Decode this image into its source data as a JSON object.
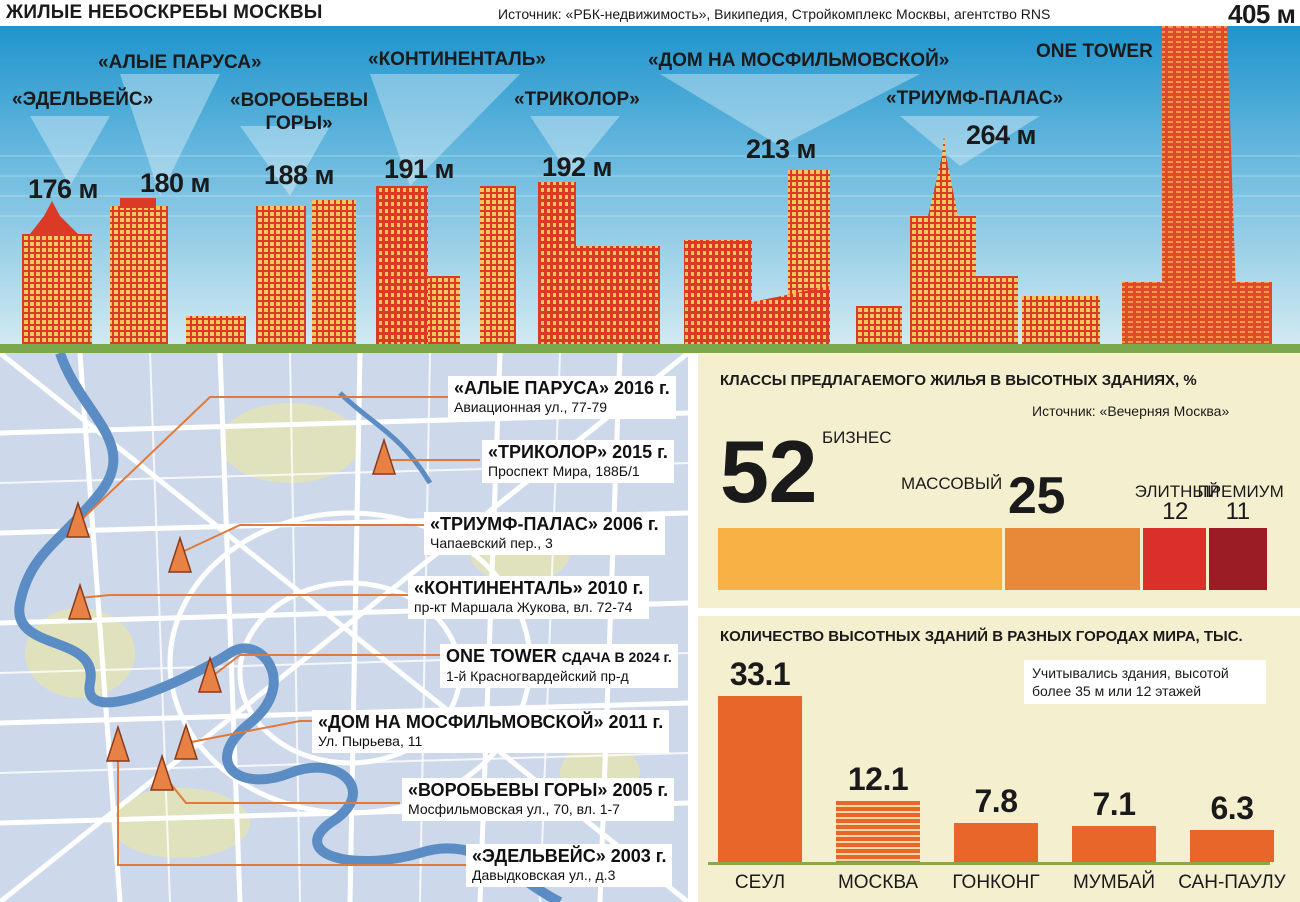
{
  "header": {
    "title": "ЖИЛЫЕ НЕБОСКРЕБЫ МОСКВЫ",
    "source": "Источник: «РБК-недвижимость», Википедия, Стройкомплекс Москвы, агентство RNS"
  },
  "skyline": {
    "buildings": [
      {
        "name": "«ЭДЕЛЬВЕЙС»",
        "height": "176 м"
      },
      {
        "name": "«АЛЫЕ ПАРУСА»",
        "height": "180 м"
      },
      {
        "name": "«ВОРОБЬЕВЫ ГОРЫ»",
        "name_line1": "«ВОРОБЬЕВЫ",
        "name_line2": "ГОРЫ»",
        "height": "188 м"
      },
      {
        "name": "«КОНТИНЕНТАЛЬ»",
        "height": "191 м"
      },
      {
        "name": "«ТРИКОЛОР»",
        "height": "192 м"
      },
      {
        "name": "«ДОМ НА МОСФИЛЬМОВСКОЙ»",
        "height": "213 м"
      },
      {
        "name": "«ТРИУМФ-ПАЛАС»",
        "height": "264 м"
      },
      {
        "name": "ONE TOWER",
        "height": "405 м"
      }
    ]
  },
  "map": {
    "callouts": [
      {
        "name": "«АЛЫЕ ПАРУСА» 2016 г.",
        "address": "Авиационная ул., 77-79"
      },
      {
        "name": "«ТРИКОЛОР» 2015 г.",
        "address": "Проспект Мира, 188Б/1"
      },
      {
        "name": "«ТРИУМФ-ПАЛАС» 2006 г.",
        "address": "Чапаевский пер., 3"
      },
      {
        "name": "«КОНТИНЕНТАЛЬ» 2010 г.",
        "address": "пр-кт Маршала Жукова, вл. 72-74"
      },
      {
        "name": "ONE TOWER",
        "name_suffix": "СДАЧА В 2024 г.",
        "address": "1-й Красногвардейский пр-д"
      },
      {
        "name": "«ДОМ НА МОСФИЛЬМОВСКОЙ» 2011 г.",
        "address": "Ул. Пырьева, 11"
      },
      {
        "name": "«ВОРОБЬЕВЫ ГОРЫ» 2005 г.",
        "address": "Мосфильмовская ул., 70, вл. 1-7"
      },
      {
        "name": "«ЭДЕЛЬВЕЙС» 2003 г.",
        "address": "Давыдковская ул., д.3"
      }
    ]
  },
  "chart_data": [
    {
      "type": "bar",
      "orientation": "stacked-horizontal",
      "title": "КЛАССЫ ПРЕДЛАГАЕМОГО ЖИЛЬЯ В ВЫСОТНЫХ ЗДАНИЯХ, %",
      "source": "Источник: «Вечерняя Москва»",
      "categories": [
        "БИЗНЕС",
        "МАССОВЫЙ",
        "ЭЛИТНЫЙ",
        "ПРЕМИУМ"
      ],
      "values": [
        52,
        25,
        12,
        11
      ],
      "colors": [
        "#f7b144",
        "#e8893a",
        "#d9312a",
        "#9b1c25"
      ]
    },
    {
      "type": "bar",
      "title": "КОЛИЧЕСТВО ВЫСОТНЫХ ЗДАНИЙ В РАЗНЫХ ГОРОДАХ МИРА, ТЫС.",
      "note": "Учитывались здания, высотой более 35 м или 12 этажей",
      "categories": [
        "СЕУЛ",
        "МОСКВА",
        "ГОНКОНГ",
        "МУМБАЙ",
        "САН-ПАУЛУ"
      ],
      "values": [
        33.1,
        12.1,
        7.8,
        7.1,
        6.3
      ],
      "value_labels": [
        "33.1",
        "12.1",
        "7.8",
        "7.1",
        "6.3"
      ],
      "ylim": [
        0,
        35
      ],
      "highlight": "МОСКВА",
      "color": "#e8662a"
    }
  ],
  "colors": {
    "sky_top": "#1f94cc",
    "sky_bottom": "#cbe7f2",
    "building_red": "#da3a26",
    "building_yellow": "#f6c65f",
    "river": "#5b8dc4",
    "map_bg": "#cdd9ea",
    "park": "#dfe2bd",
    "callout_line": "#e07a3a",
    "panel_bg": "#f4f0cf"
  }
}
